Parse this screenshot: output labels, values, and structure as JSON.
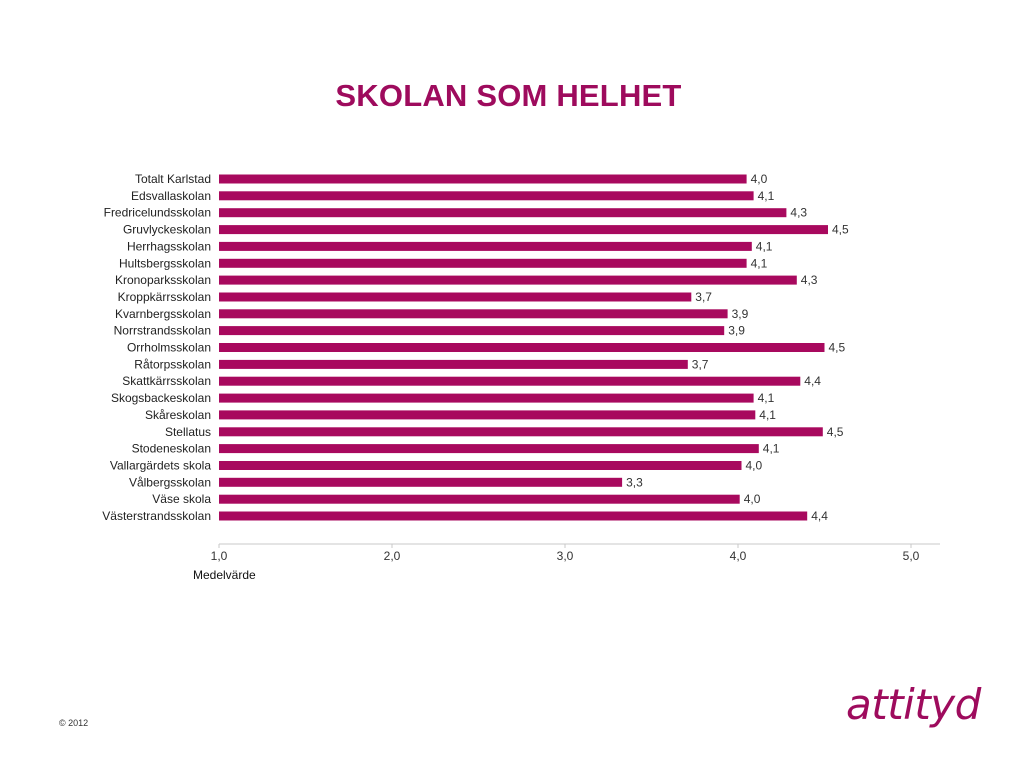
{
  "slide": {
    "title": "SKOLAN SOM HELHET",
    "copyright": "© 2012",
    "logo_text": "attityd",
    "accent_color": "#9e0b5d"
  },
  "chart_data": {
    "type": "bar",
    "orientation": "horizontal",
    "categories": [
      "Totalt Karlstad",
      "Edsvallaskolan",
      "Fredricelundsskolan",
      "Gruvlyckeskolan",
      "Herrhagsskolan",
      "Hultsbergsskolan",
      "Kronoparksskolan",
      "Kroppkärrsskolan",
      "Kvarnbergsskolan",
      "Norrstrandsskolan",
      "Orrholmsskolan",
      "Råtorpsskolan",
      "Skattkärrsskolan",
      "Skogsbackeskolan",
      "Skåreskolan",
      "Stellatus",
      "Stodeneskolan",
      "Vallargärdets skola",
      "Vålbergsskolan",
      "Väse skola",
      "Västerstrandsskolan"
    ],
    "values": [
      4.05,
      4.09,
      4.28,
      4.52,
      4.08,
      4.05,
      4.34,
      3.73,
      3.94,
      3.92,
      4.5,
      3.71,
      4.36,
      4.09,
      4.1,
      4.49,
      4.12,
      4.02,
      3.33,
      4.01,
      4.4
    ],
    "value_labels": [
      "4,0",
      "4,1",
      "4,3",
      "4,5",
      "4,1",
      "4,1",
      "4,3",
      "3,7",
      "3,9",
      "3,9",
      "4,5",
      "3,7",
      "4,4",
      "4,1",
      "4,1",
      "4,5",
      "4,1",
      "4,0",
      "3,3",
      "4,0",
      "4,4"
    ],
    "xlim": [
      1,
      5
    ],
    "xticks": [
      "1,0",
      "2,0",
      "3,0",
      "4,0",
      "5,0"
    ],
    "xlabel": "Medelvärde",
    "ylabel": "",
    "bar_color": "#a8095e",
    "grid": false,
    "legend": "none"
  }
}
